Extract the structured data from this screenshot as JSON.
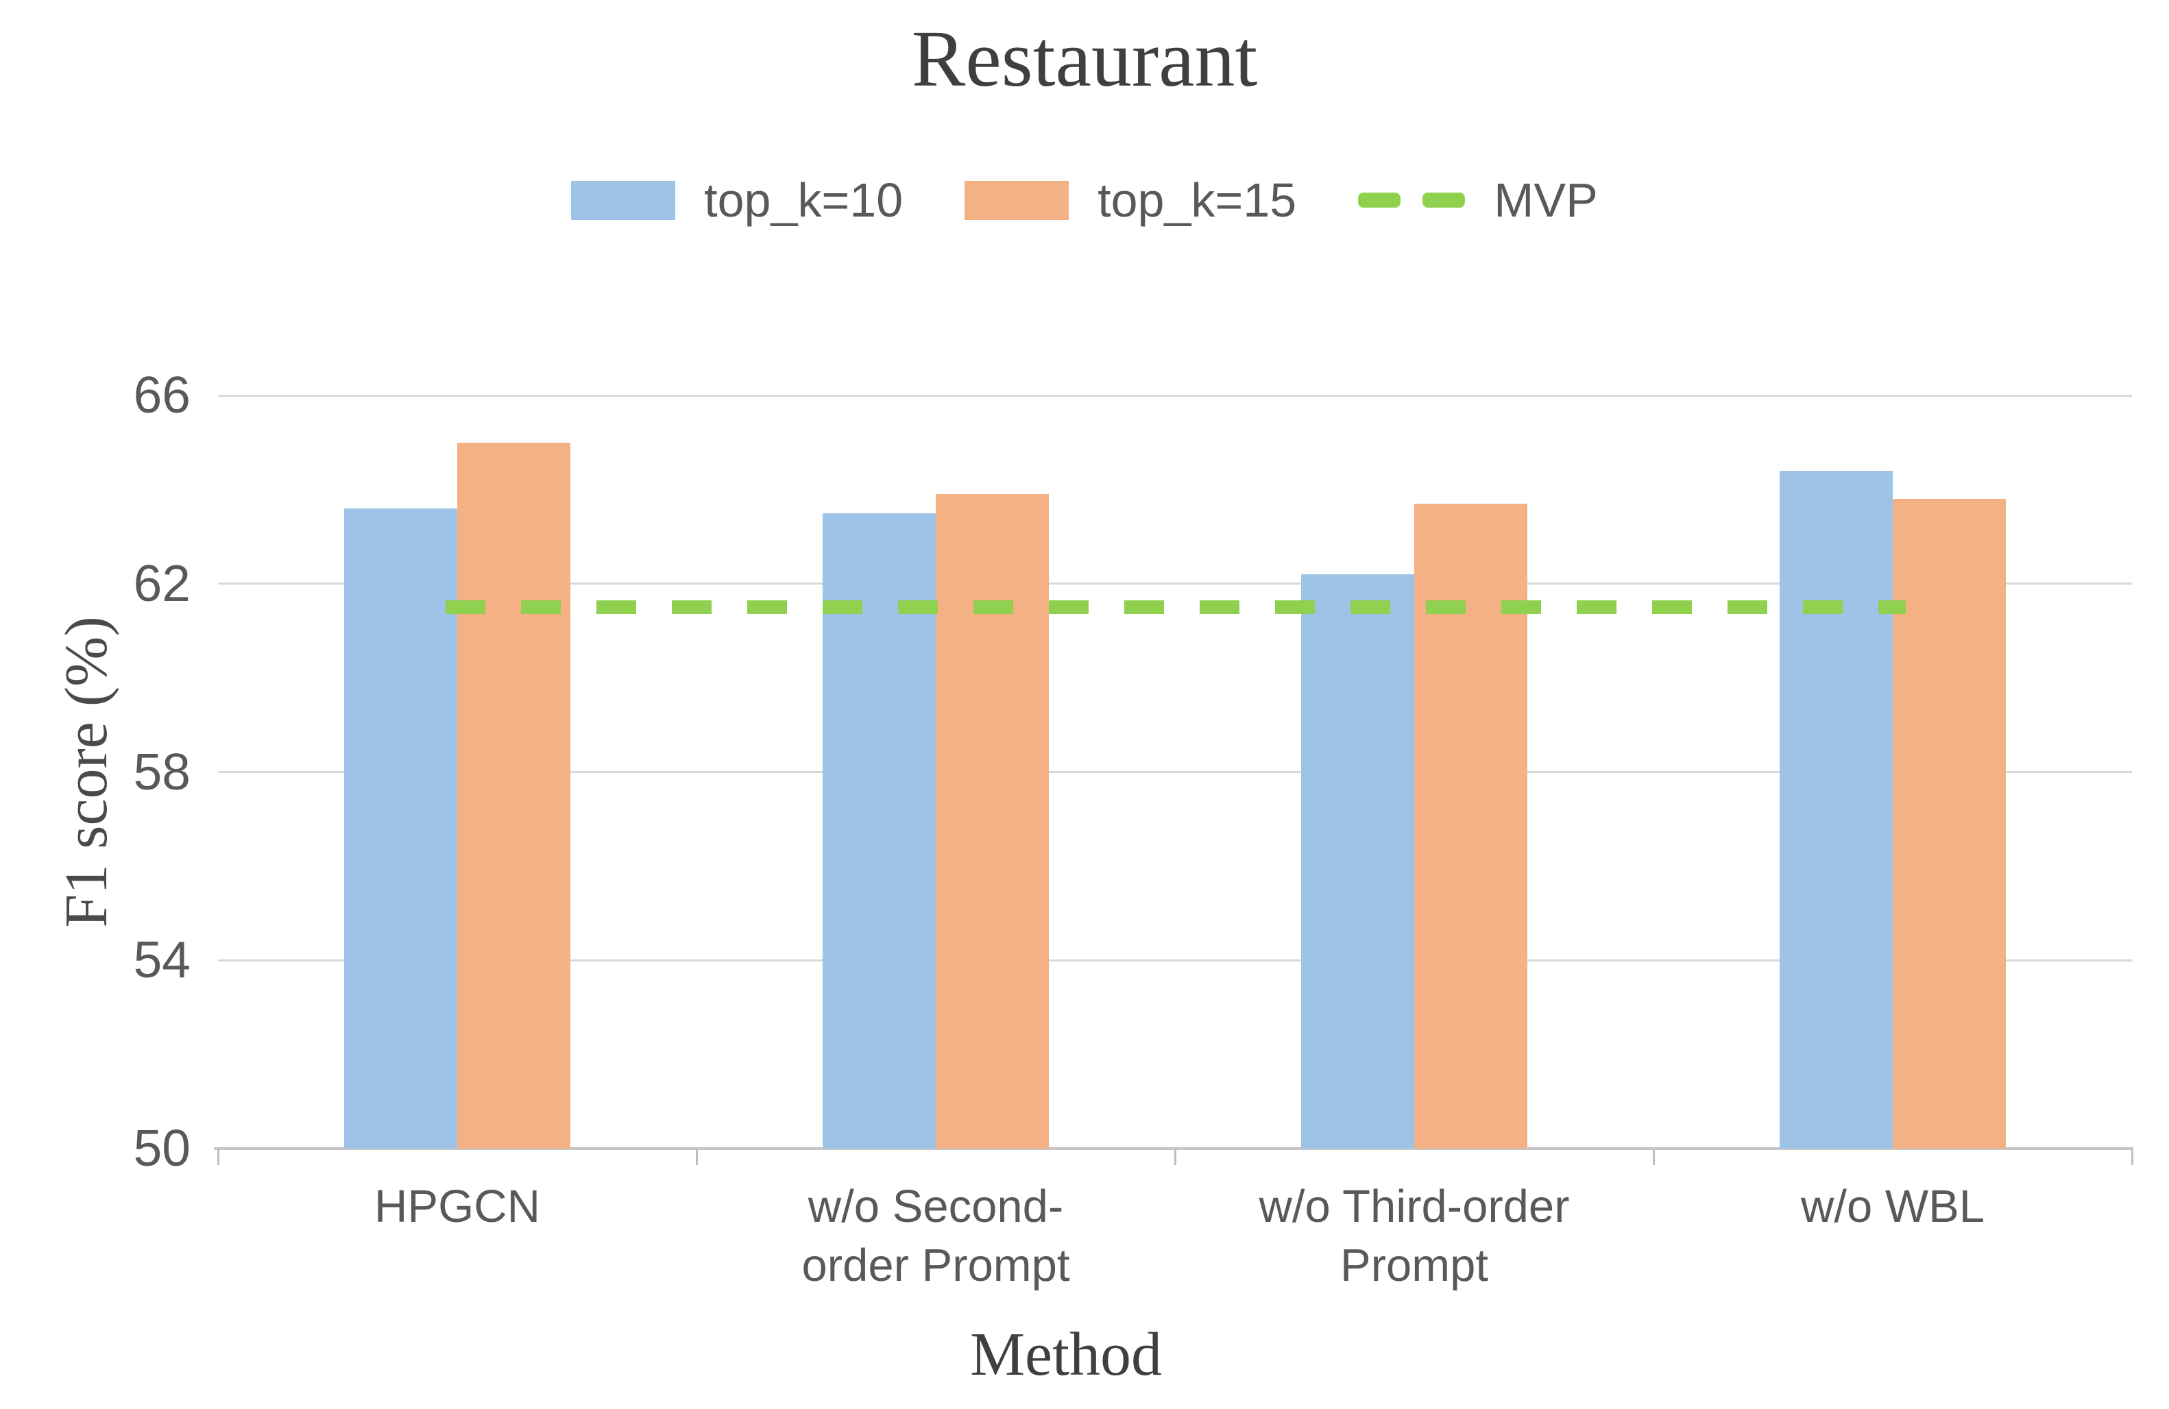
{
  "title": "Restaurant",
  "legend": [
    {
      "label": "top_k=10",
      "color": "#9dc3e6",
      "type": "swatch"
    },
    {
      "label": "top_k=15",
      "color": "#f4b183",
      "type": "swatch"
    },
    {
      "label": "MVP",
      "color": "#8fd14f",
      "type": "dash"
    }
  ],
  "axes": {
    "y_title": "F1 score (%)",
    "x_title": "Method"
  },
  "chart_data": {
    "type": "bar",
    "title": "Restaurant",
    "xlabel": "Method",
    "ylabel": "F1 score (%)",
    "ylim": [
      50,
      66
    ],
    "yticks": [
      66,
      62,
      58,
      54,
      50
    ],
    "grid": true,
    "legend_position": "top",
    "categories": [
      "HPGCN",
      "w/o Second-\norder Prompt",
      "w/o Third-order\nPrompt",
      "w/o WBL"
    ],
    "series": [
      {
        "name": "top_k=10",
        "color": "#9dc3e6",
        "values": [
          63.6,
          63.5,
          62.2,
          64.4
        ]
      },
      {
        "name": "top_k=15",
        "color": "#f4b183",
        "values": [
          65.0,
          63.9,
          63.7,
          63.8
        ]
      }
    ],
    "reference_line": {
      "name": "MVP",
      "value": 61.5,
      "color": "#8fd14f",
      "style": "dashed"
    },
    "colors": {
      "gridline": "#d9d9d9",
      "axis": "#bfbfbf",
      "text": "#595959"
    }
  }
}
